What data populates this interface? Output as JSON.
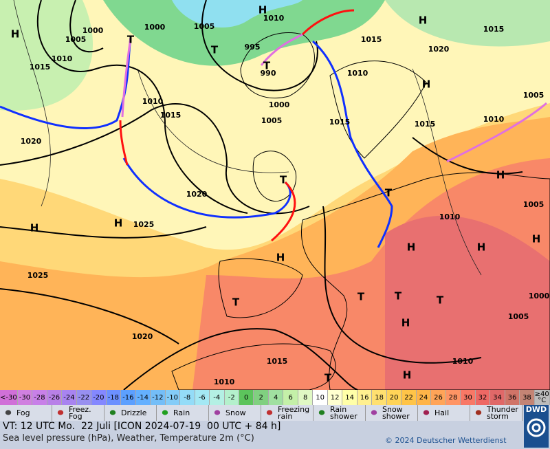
{
  "map": {
    "isobar_labels": [
      "1000",
      "1005",
      "1010",
      "1015",
      "1000",
      "1005",
      "1010",
      "995",
      "990",
      "1000",
      "1005",
      "1010",
      "1015",
      "1020",
      "1020",
      "1025",
      "1025",
      "1020",
      "1015",
      "1010",
      "1010",
      "1005",
      "1000",
      "1010",
      "1005",
      "1010",
      "1015",
      "1015",
      "1010",
      "1015",
      "1020",
      "1015",
      "1005"
    ],
    "pressure_centers": [
      "H",
      "T",
      "H",
      "T",
      "T",
      "H",
      "H",
      "H",
      "H",
      "H",
      "T",
      "T",
      "T",
      "H",
      "H",
      "H",
      "H",
      "T",
      "T",
      "T",
      "T",
      "H",
      "H"
    ]
  },
  "color_scale": {
    "labels": [
      "<-30",
      "-30",
      "-28",
      "-26",
      "-24",
      "-22",
      "-20",
      "-18",
      "-16",
      "-14",
      "-12",
      "-10",
      "-8",
      "-6",
      "-4",
      "-2",
      "0",
      "2",
      "4",
      "6",
      "8",
      "10",
      "12",
      "14",
      "16",
      "18",
      "20",
      "22",
      "24",
      "26",
      "28",
      "30",
      "32",
      "34",
      "36",
      "38",
      "≥40 °C"
    ],
    "colors": [
      "#d070d8",
      "#d080e0",
      "#c880e8",
      "#b880e8",
      "#a884f0",
      "#9890f0",
      "#8488ff",
      "#6c90ff",
      "#5ca0ff",
      "#64b0ff",
      "#74bef8",
      "#84ccf8",
      "#94dcf8",
      "#a4e8f4",
      "#b4f0e4",
      "#b4f0cc",
      "#5cc45c",
      "#80d080",
      "#a0e0a0",
      "#c4f0a8",
      "#e0f8c4",
      "#ffffff",
      "#ffffd0",
      "#ffffa8",
      "#fff090",
      "#ffe070",
      "#ffd458",
      "#ffc448",
      "#ffb448",
      "#ffa458",
      "#ff9464",
      "#f87866",
      "#ee6864",
      "#e06868",
      "#d07468",
      "#c48474",
      "#bcbcbc"
    ]
  },
  "legend": [
    "Fog",
    "Freez. Fog",
    "Drizzle",
    "Rain",
    "Snow",
    "Freezing rain",
    "Rain shower",
    "Snow shower",
    "Hail",
    "Thunder storm"
  ],
  "footer": {
    "valid_time": "VT: 12 UTC Mo.  22 Juli [ICON 2024-07-19  00 UTC + 84 h]",
    "description": "Sea level pressure (hPa), Weather, Temperature 2m (°C)",
    "copyright": "© 2024 Deutscher Wetterdienst",
    "logo": "DWD"
  }
}
